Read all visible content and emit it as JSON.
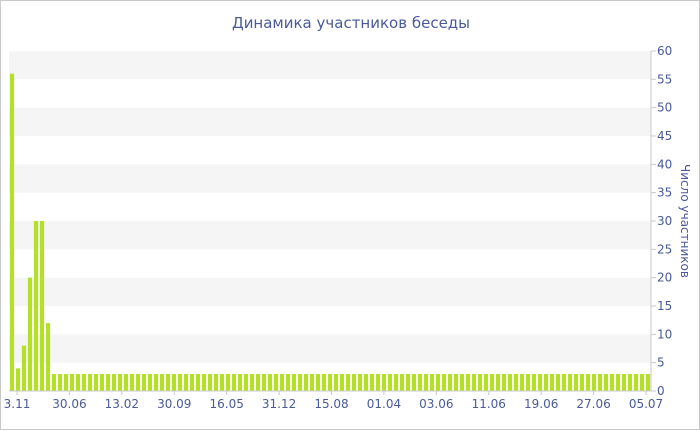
{
  "chart_data": {
    "type": "bar",
    "title": "Динамика участников беседы",
    "xlabel": "",
    "ylabel": "Число участников",
    "ylim": [
      0,
      60
    ],
    "y_ticks": [
      0,
      5,
      10,
      15,
      20,
      25,
      30,
      35,
      40,
      45,
      50,
      55,
      60
    ],
    "x_tick_labels": [
      "3.11",
      "30.06",
      "13.02",
      "30.09",
      "16.05",
      "31.12",
      "15.08",
      "01.04",
      "03.06",
      "11.06",
      "19.06",
      "27.06",
      "05.07"
    ],
    "grid": "horizontal alternating bands",
    "bar_color": "#b4e02a",
    "series": [
      {
        "values": [
          56,
          4,
          8,
          20,
          30,
          30,
          12,
          3,
          3,
          3,
          3,
          3,
          3,
          3,
          3,
          3,
          3,
          3,
          3,
          3,
          3,
          3,
          3,
          3,
          3,
          3,
          3,
          3,
          3,
          3,
          3,
          3,
          3,
          3,
          3,
          3,
          3,
          3,
          3,
          3,
          3,
          3,
          3,
          3,
          3,
          3,
          3,
          3,
          3,
          3,
          3,
          3,
          3,
          3,
          3,
          3,
          3,
          3,
          3,
          3,
          3,
          3,
          3,
          3,
          3,
          3,
          3,
          3,
          3,
          3,
          3,
          3,
          3,
          3,
          3,
          3,
          3,
          3,
          3,
          3,
          3,
          3,
          3,
          3,
          3,
          3,
          3,
          3,
          3,
          3,
          3,
          3,
          3,
          3,
          3,
          3,
          3,
          3,
          3,
          3,
          3,
          3,
          3,
          3,
          3,
          3,
          3
        ]
      }
    ]
  }
}
